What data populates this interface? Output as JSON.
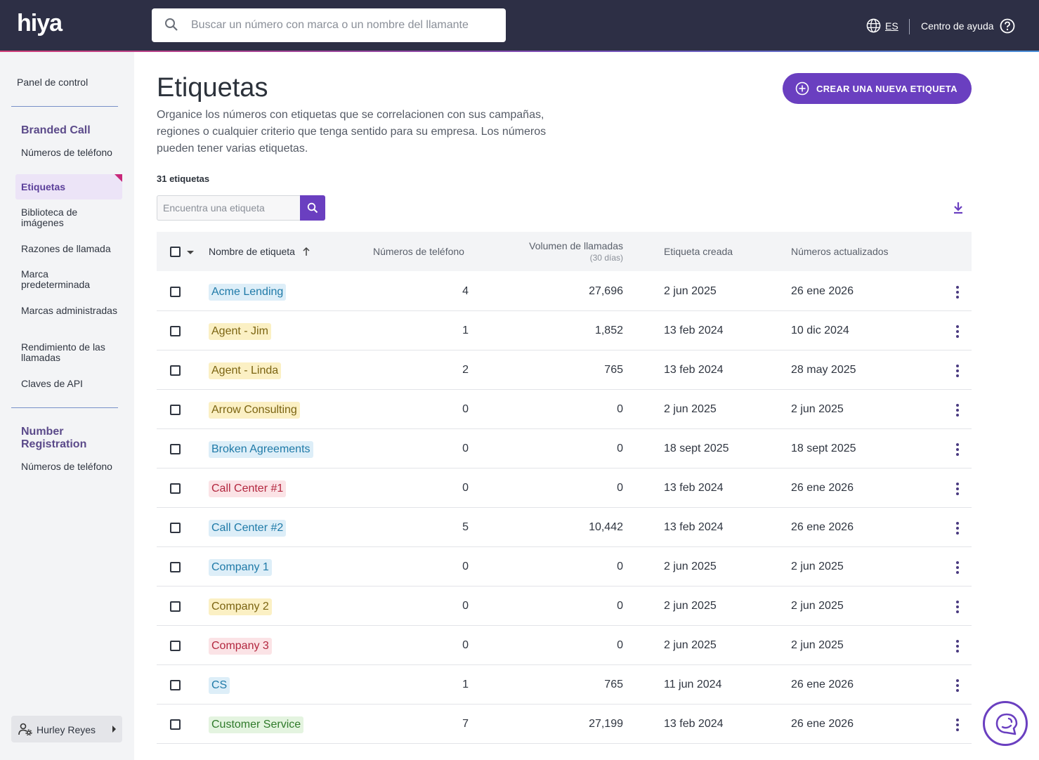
{
  "header": {
    "logo": "hiya",
    "search_placeholder": "Buscar un número con marca o un nombre del llamante",
    "language": "ES",
    "help_label": "Centro de ayuda"
  },
  "sidebar": {
    "dashboard": "Panel de control",
    "branded_call_section": "Branded Call",
    "branded_items": [
      "Números de teléfono",
      "Etiquetas",
      "Biblioteca de imágenes",
      "Razones de llamada",
      "Marca predeterminada",
      "Marcas administradas",
      "Rendimiento de las llamadas",
      "Claves de API"
    ],
    "number_registration_section": "Number Registration",
    "registration_items": [
      "Números de teléfono"
    ],
    "user_name": "Hurley Reyes"
  },
  "main": {
    "title": "Etiquetas",
    "description": "Organice los números con etiquetas que se correlacionen con sus campañas, regiones o cualquier criterio que tenga sentido para su empresa. Los números pueden tener varias etiquetas.",
    "create_button": "CREAR UNA NUEVA ETIQUETA",
    "count_label": "31 etiquetas",
    "tag_search_placeholder": "Encuentra una etiqueta"
  },
  "table": {
    "columns": {
      "name": "Nombre de etiqueta",
      "phones": "Números de teléfono",
      "volume": "Volumen de llamadas",
      "volume_sub": "(30 días)",
      "created": "Etiqueta creada",
      "updated": "Números actualizados"
    },
    "rows": [
      {
        "name": "Acme Lending",
        "color": "blue",
        "phones": "4",
        "volume": "27,696",
        "created": "2 jun 2025",
        "updated": "26 ene 2026"
      },
      {
        "name": "Agent - Jim",
        "color": "yellow",
        "phones": "1",
        "volume": "1,852",
        "created": "13 feb 2024",
        "updated": "10 dic 2024"
      },
      {
        "name": "Agent - Linda",
        "color": "yellow",
        "phones": "2",
        "volume": "765",
        "created": "13 feb 2024",
        "updated": "28 may 2025"
      },
      {
        "name": "Arrow Consulting",
        "color": "yellow",
        "phones": "0",
        "volume": "0",
        "created": "2 jun 2025",
        "updated": "2 jun 2025"
      },
      {
        "name": "Broken Agreements",
        "color": "blue",
        "phones": "0",
        "volume": "0",
        "created": "18 sept 2025",
        "updated": "18 sept 2025"
      },
      {
        "name": "Call Center #1",
        "color": "red",
        "phones": "0",
        "volume": "0",
        "created": "13 feb 2024",
        "updated": "26 ene 2026"
      },
      {
        "name": "Call Center #2",
        "color": "blue",
        "phones": "5",
        "volume": "10,442",
        "created": "13 feb 2024",
        "updated": "26 ene 2026"
      },
      {
        "name": "Company 1",
        "color": "blue",
        "phones": "0",
        "volume": "0",
        "created": "2 jun 2025",
        "updated": "2 jun 2025"
      },
      {
        "name": "Company 2",
        "color": "yellow",
        "phones": "0",
        "volume": "0",
        "created": "2 jun 2025",
        "updated": "2 jun 2025"
      },
      {
        "name": "Company 3",
        "color": "red",
        "phones": "0",
        "volume": "0",
        "created": "2 jun 2025",
        "updated": "2 jun 2025"
      },
      {
        "name": "CS",
        "color": "blue",
        "phones": "1",
        "volume": "765",
        "created": "11 jun 2024",
        "updated": "26 ene 2026"
      },
      {
        "name": "Customer Service",
        "color": "green",
        "phones": "7",
        "volume": "27,199",
        "created": "13 feb 2024",
        "updated": "26 ene 2026"
      }
    ]
  },
  "colors": {
    "accent": "#6a3fc0",
    "topbar": "#2d2f45",
    "sidebar_bg": "#f3f4f6"
  }
}
